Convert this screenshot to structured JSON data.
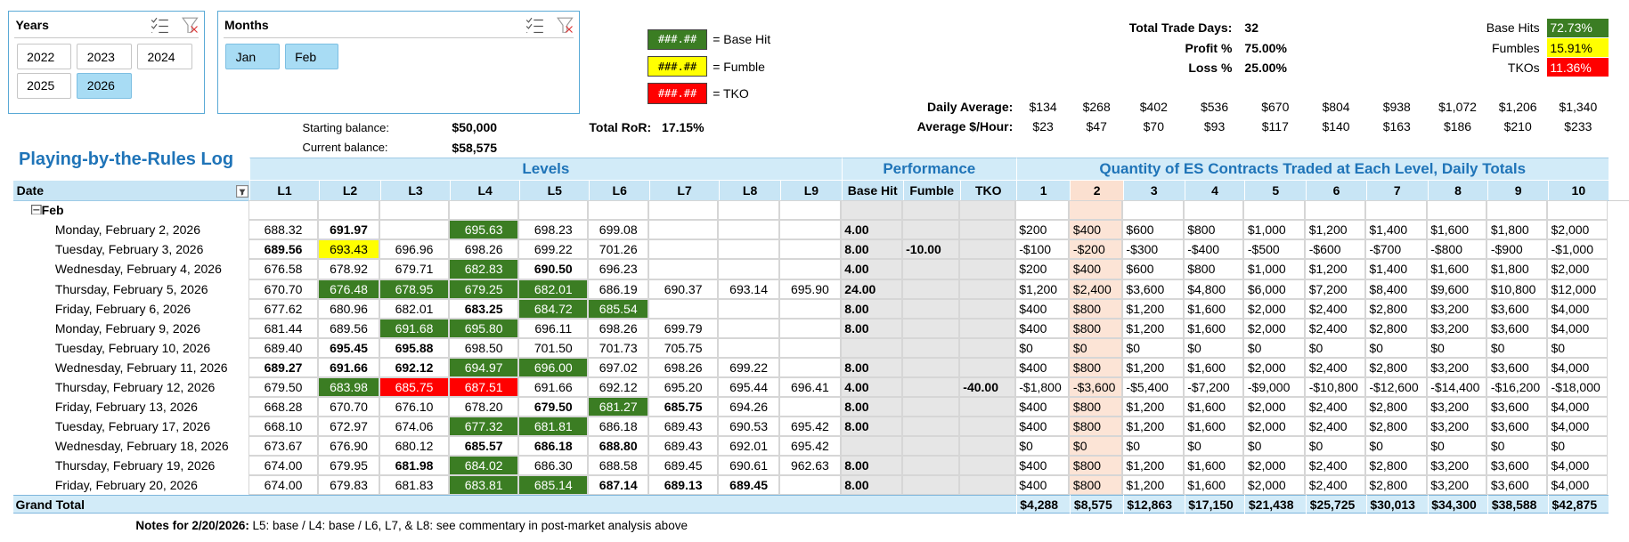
{
  "slicers": [
    {
      "title": "Years",
      "items": [
        "2022",
        "2023",
        "2024",
        "2025",
        "2026"
      ],
      "selected": [
        "2026"
      ]
    },
    {
      "title": "Months",
      "items": [
        "Jan",
        "Feb"
      ],
      "selected": [
        "Jan",
        "Feb"
      ]
    }
  ],
  "legend": [
    {
      "sample": "###.##",
      "label": "= Base Hit",
      "color": "#3b7d23"
    },
    {
      "sample": "###.##",
      "label": "= Fumble",
      "color": "#ffff00"
    },
    {
      "sample": "###.##",
      "label": "= TKO",
      "color": "#ff0000"
    }
  ],
  "balances": [
    {
      "label": "Starting balance:",
      "value": "$50,000"
    },
    {
      "label": "Current balance:",
      "value": "$58,575"
    }
  ],
  "ror": {
    "label": "Total RoR:",
    "value": "17.15%"
  },
  "stats": [
    {
      "label": "Total Trade Days:",
      "value": "32"
    },
    {
      "label": "Profit %",
      "value": "75.00%"
    },
    {
      "label": "Loss %",
      "value": "25.00%"
    }
  ],
  "outcomes": [
    {
      "label": "Base Hits",
      "value": "72.73%",
      "color": "#3b7d23"
    },
    {
      "label": "Fumbles",
      "value": "15.91%",
      "color": "#ffff00"
    },
    {
      "label": "TKOs",
      "value": "11.36%",
      "color": "#ff0000"
    }
  ],
  "averages": [
    {
      "label": "Daily Average:",
      "values": [
        "$134",
        "$268",
        "$402",
        "$536",
        "$670",
        "$804",
        "$938",
        "$1,072",
        "$1,206",
        "$1,340"
      ]
    },
    {
      "label": "Average $/Hour:",
      "values": [
        "$23",
        "$47",
        "$70",
        "$93",
        "$117",
        "$140",
        "$163",
        "$186",
        "$210",
        "$233"
      ]
    }
  ],
  "table": {
    "title": "Playing-by-the-Rules Log",
    "groups": [
      "Levels",
      "Performance",
      "Quantity of ES Contracts Traded at Each Level, Daily Totals"
    ],
    "columns": [
      "Date",
      "L1",
      "L2",
      "L3",
      "L4",
      "L5",
      "L6",
      "L7",
      "L8",
      "L9",
      "Base Hit",
      "Fumble",
      "TKO",
      "1",
      "2",
      "3",
      "4",
      "5",
      "6",
      "7",
      "8",
      "9",
      "10"
    ],
    "highlight_column": "2",
    "group": "Feb",
    "rows": [
      {
        "date": "Monday, February 2, 2026",
        "levels": [
          "688.32",
          "691.97",
          null,
          "695.63",
          "698.23",
          "699.08",
          null,
          null,
          null
        ],
        "styles": [
          null,
          "bold",
          null,
          "green",
          null,
          null,
          null,
          null,
          null
        ],
        "performance": [
          "4.00",
          null,
          null
        ],
        "totals": [
          "$200",
          "$400",
          "$600",
          "$800",
          "$1,000",
          "$1,200",
          "$1,400",
          "$1,600",
          "$1,800",
          "$2,000"
        ]
      },
      {
        "date": "Tuesday, February 3, 2026",
        "levels": [
          "689.56",
          "693.43",
          "696.96",
          "698.26",
          "699.22",
          "701.26",
          null,
          null,
          null
        ],
        "styles": [
          "bold",
          "yellow",
          null,
          null,
          null,
          null,
          null,
          null,
          null
        ],
        "performance": [
          "8.00",
          "-10.00",
          null
        ],
        "totals": [
          "-$100",
          "-$200",
          "-$300",
          "-$400",
          "-$500",
          "-$600",
          "-$700",
          "-$800",
          "-$900",
          "-$1,000"
        ]
      },
      {
        "date": "Wednesday, February 4, 2026",
        "levels": [
          "676.58",
          "678.92",
          "679.71",
          "682.83",
          "690.50",
          "696.23",
          null,
          null,
          null
        ],
        "styles": [
          null,
          null,
          null,
          "green",
          "bold",
          null,
          null,
          null,
          null
        ],
        "performance": [
          "4.00",
          null,
          null
        ],
        "totals": [
          "$200",
          "$400",
          "$600",
          "$800",
          "$1,000",
          "$1,200",
          "$1,400",
          "$1,600",
          "$1,800",
          "$2,000"
        ]
      },
      {
        "date": "Thursday, February 5, 2026",
        "levels": [
          "670.70",
          "676.48",
          "678.95",
          "679.25",
          "682.01",
          "686.19",
          "690.37",
          "693.14",
          "695.90"
        ],
        "styles": [
          null,
          "green",
          "green",
          "green",
          "green",
          null,
          null,
          null,
          null
        ],
        "performance": [
          "24.00",
          null,
          null
        ],
        "totals": [
          "$1,200",
          "$2,400",
          "$3,600",
          "$4,800",
          "$6,000",
          "$7,200",
          "$8,400",
          "$9,600",
          "$10,800",
          "$12,000"
        ]
      },
      {
        "date": "Friday, February 6, 2026",
        "levels": [
          "677.62",
          "680.96",
          "682.01",
          "683.25",
          "684.72",
          "685.54",
          null,
          null,
          null
        ],
        "styles": [
          null,
          null,
          null,
          "bold",
          "green",
          "green",
          null,
          null,
          null
        ],
        "performance": [
          "8.00",
          null,
          null
        ],
        "totals": [
          "$400",
          "$800",
          "$1,200",
          "$1,600",
          "$2,000",
          "$2,400",
          "$2,800",
          "$3,200",
          "$3,600",
          "$4,000"
        ]
      },
      {
        "date": "Monday, February 9, 2026",
        "levels": [
          "681.44",
          "689.56",
          "691.68",
          "695.80",
          "696.11",
          "698.26",
          "699.79",
          null,
          null
        ],
        "styles": [
          null,
          null,
          "green",
          "green",
          null,
          null,
          null,
          null,
          null
        ],
        "performance": [
          "8.00",
          null,
          null
        ],
        "totals": [
          "$400",
          "$800",
          "$1,200",
          "$1,600",
          "$2,000",
          "$2,400",
          "$2,800",
          "$3,200",
          "$3,600",
          "$4,000"
        ]
      },
      {
        "date": "Tuesday, February 10, 2026",
        "levels": [
          "689.40",
          "695.45",
          "695.88",
          "698.50",
          "701.50",
          "701.73",
          "705.75",
          null,
          null
        ],
        "styles": [
          null,
          "bold",
          "bold",
          null,
          null,
          null,
          null,
          null,
          null
        ],
        "performance": [
          null,
          null,
          null
        ],
        "totals": [
          "$0",
          "$0",
          "$0",
          "$0",
          "$0",
          "$0",
          "$0",
          "$0",
          "$0",
          "$0"
        ]
      },
      {
        "date": "Wednesday, February 11, 2026",
        "levels": [
          "689.27",
          "691.66",
          "692.12",
          "694.97",
          "696.00",
          "697.02",
          "698.26",
          "699.22",
          null
        ],
        "styles": [
          "bold",
          "bold",
          "bold",
          "green",
          "green",
          null,
          null,
          null,
          null
        ],
        "performance": [
          "8.00",
          null,
          null
        ],
        "totals": [
          "$400",
          "$800",
          "$1,200",
          "$1,600",
          "$2,000",
          "$2,400",
          "$2,800",
          "$3,200",
          "$3,600",
          "$4,000"
        ]
      },
      {
        "date": "Thursday, February 12, 2026",
        "levels": [
          "679.50",
          "683.98",
          "685.75",
          "687.51",
          "691.66",
          "692.12",
          "695.20",
          "695.44",
          "696.41"
        ],
        "styles": [
          null,
          "green",
          "red",
          "red",
          null,
          null,
          null,
          null,
          null
        ],
        "performance": [
          "4.00",
          null,
          "-40.00"
        ],
        "totals": [
          "-$1,800",
          "-$3,600",
          "-$5,400",
          "-$7,200",
          "-$9,000",
          "-$10,800",
          "-$12,600",
          "-$14,400",
          "-$16,200",
          "-$18,000"
        ]
      },
      {
        "date": "Friday, February 13, 2026",
        "levels": [
          "668.28",
          "670.70",
          "676.10",
          "678.20",
          "679.50",
          "681.27",
          "685.75",
          "694.26",
          null
        ],
        "styles": [
          null,
          null,
          null,
          null,
          "bold",
          "green",
          "bold",
          null,
          null
        ],
        "performance": [
          "8.00",
          null,
          null
        ],
        "totals": [
          "$400",
          "$800",
          "$1,200",
          "$1,600",
          "$2,000",
          "$2,400",
          "$2,800",
          "$3,200",
          "$3,600",
          "$4,000"
        ]
      },
      {
        "date": "Tuesday, February 17, 2026",
        "levels": [
          "668.10",
          "672.97",
          "674.06",
          "677.32",
          "681.81",
          "686.18",
          "689.43",
          "690.53",
          "695.42"
        ],
        "styles": [
          null,
          null,
          null,
          "green",
          "green",
          null,
          null,
          null,
          null
        ],
        "performance": [
          "8.00",
          null,
          null
        ],
        "totals": [
          "$400",
          "$800",
          "$1,200",
          "$1,600",
          "$2,000",
          "$2,400",
          "$2,800",
          "$3,200",
          "$3,600",
          "$4,000"
        ]
      },
      {
        "date": "Wednesday, February 18, 2026",
        "levels": [
          "673.67",
          "676.90",
          "680.12",
          "685.57",
          "686.18",
          "688.80",
          "689.43",
          "692.01",
          "695.42"
        ],
        "styles": [
          null,
          null,
          null,
          "bold",
          "bold",
          "bold",
          null,
          null,
          null
        ],
        "performance": [
          null,
          null,
          null
        ],
        "totals": [
          "$0",
          "$0",
          "$0",
          "$0",
          "$0",
          "$0",
          "$0",
          "$0",
          "$0",
          "$0"
        ]
      },
      {
        "date": "Thursday, February 19, 2026",
        "levels": [
          "674.00",
          "679.95",
          "681.98",
          "684.02",
          "686.30",
          "688.58",
          "689.45",
          "690.61",
          "962.63"
        ],
        "styles": [
          null,
          null,
          "bold",
          "green",
          null,
          null,
          null,
          null,
          null
        ],
        "performance": [
          "8.00",
          null,
          null
        ],
        "totals": [
          "$400",
          "$800",
          "$1,200",
          "$1,600",
          "$2,000",
          "$2,400",
          "$2,800",
          "$3,200",
          "$3,600",
          "$4,000"
        ]
      },
      {
        "date": "Friday, February 20, 2026",
        "levels": [
          "674.00",
          "679.83",
          "681.83",
          "683.81",
          "685.14",
          "687.14",
          "689.13",
          "689.45",
          null
        ],
        "styles": [
          null,
          null,
          null,
          "green",
          "green",
          "bold",
          "bold",
          "bold",
          null
        ],
        "performance": [
          "8.00",
          null,
          null
        ],
        "totals": [
          "$400",
          "$800",
          "$1,200",
          "$1,600",
          "$2,000",
          "$2,400",
          "$2,800",
          "$3,200",
          "$3,600",
          "$4,000"
        ]
      }
    ],
    "grand_total": {
      "label": "Grand Total",
      "values": [
        "$4,288",
        "$8,575",
        "$12,863",
        "$17,150",
        "$21,438",
        "$25,725",
        "$30,013",
        "$34,300",
        "$38,588",
        "$42,875"
      ]
    }
  },
  "notes": {
    "label": "Notes for 2/20/2026:",
    "text": "L5: base / L4: base / L6, L7, & L8: see commentary in post-market analysis above"
  }
}
